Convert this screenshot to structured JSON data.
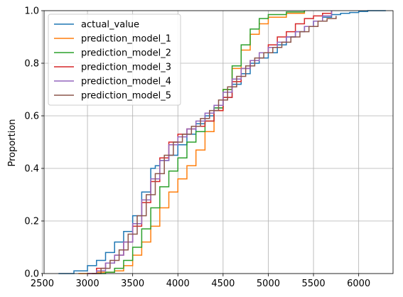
{
  "chart_data": {
    "type": "line",
    "subtype": "ecdf-step",
    "title": "",
    "xlabel": "",
    "ylabel": "Proportion",
    "xlim": [
      2520,
      6380
    ],
    "ylim": [
      0,
      1
    ],
    "xticks": [
      2500,
      3000,
      3500,
      4000,
      4500,
      5000,
      5500,
      6000
    ],
    "yticks": [
      0.0,
      0.2,
      0.4,
      0.6,
      0.8,
      1.0
    ],
    "grid": true,
    "legend_position": "top-left",
    "series": [
      {
        "name": "actual_value",
        "color": "#1f77b4",
        "points": [
          [
            2680,
            0
          ],
          [
            2850,
            0.01
          ],
          [
            3000,
            0.03
          ],
          [
            3100,
            0.05
          ],
          [
            3200,
            0.08
          ],
          [
            3300,
            0.12
          ],
          [
            3400,
            0.16
          ],
          [
            3500,
            0.22
          ],
          [
            3600,
            0.31
          ],
          [
            3700,
            0.4
          ],
          [
            3750,
            0.41
          ],
          [
            3800,
            0.43
          ],
          [
            3900,
            0.45
          ],
          [
            4000,
            0.49
          ],
          [
            4100,
            0.53
          ],
          [
            4200,
            0.57
          ],
          [
            4300,
            0.6
          ],
          [
            4400,
            0.63
          ],
          [
            4500,
            0.67
          ],
          [
            4600,
            0.72
          ],
          [
            4700,
            0.76
          ],
          [
            4800,
            0.8
          ],
          [
            4900,
            0.82
          ],
          [
            5000,
            0.84
          ],
          [
            5100,
            0.87
          ],
          [
            5200,
            0.9
          ],
          [
            5300,
            0.92
          ],
          [
            5400,
            0.94
          ],
          [
            5500,
            0.96
          ],
          [
            5600,
            0.975
          ],
          [
            5700,
            0.985
          ],
          [
            5800,
            0.99
          ],
          [
            5900,
            0.993
          ],
          [
            6000,
            0.997
          ],
          [
            6100,
            1.0
          ],
          [
            6300,
            1.0
          ]
        ]
      },
      {
        "name": "prediction_model_1",
        "color": "#ff7f0e",
        "points": [
          [
            2900,
            0
          ],
          [
            3100,
            0.005
          ],
          [
            3300,
            0.01
          ],
          [
            3400,
            0.03
          ],
          [
            3500,
            0.07
          ],
          [
            3600,
            0.12
          ],
          [
            3700,
            0.18
          ],
          [
            3800,
            0.25
          ],
          [
            3900,
            0.31
          ],
          [
            4000,
            0.36
          ],
          [
            4100,
            0.41
          ],
          [
            4200,
            0.47
          ],
          [
            4300,
            0.54
          ],
          [
            4400,
            0.62
          ],
          [
            4500,
            0.7
          ],
          [
            4600,
            0.78
          ],
          [
            4700,
            0.85
          ],
          [
            4800,
            0.91
          ],
          [
            4900,
            0.95
          ],
          [
            5000,
            0.975
          ],
          [
            5200,
            0.99
          ],
          [
            5400,
            1.0
          ]
        ]
      },
      {
        "name": "prediction_model_2",
        "color": "#2ca02c",
        "points": [
          [
            3100,
            0
          ],
          [
            3200,
            0.005
          ],
          [
            3300,
            0.02
          ],
          [
            3400,
            0.05
          ],
          [
            3500,
            0.1
          ],
          [
            3600,
            0.17
          ],
          [
            3700,
            0.25
          ],
          [
            3800,
            0.33
          ],
          [
            3900,
            0.39
          ],
          [
            4000,
            0.44
          ],
          [
            4100,
            0.5
          ],
          [
            4200,
            0.54
          ],
          [
            4300,
            0.58
          ],
          [
            4400,
            0.63
          ],
          [
            4500,
            0.7
          ],
          [
            4600,
            0.79
          ],
          [
            4700,
            0.87
          ],
          [
            4800,
            0.93
          ],
          [
            4900,
            0.97
          ],
          [
            5000,
            0.985
          ],
          [
            5200,
            0.995
          ],
          [
            5400,
            1.0
          ]
        ]
      },
      {
        "name": "prediction_model_3",
        "color": "#d62728",
        "points": [
          [
            3000,
            0
          ],
          [
            3100,
            0.02
          ],
          [
            3200,
            0.04
          ],
          [
            3300,
            0.07
          ],
          [
            3400,
            0.12
          ],
          [
            3500,
            0.18
          ],
          [
            3600,
            0.27
          ],
          [
            3700,
            0.35
          ],
          [
            3800,
            0.44
          ],
          [
            3900,
            0.5
          ],
          [
            4000,
            0.53
          ],
          [
            4100,
            0.55
          ],
          [
            4200,
            0.56
          ],
          [
            4300,
            0.58
          ],
          [
            4400,
            0.62
          ],
          [
            4500,
            0.67
          ],
          [
            4600,
            0.73
          ],
          [
            4700,
            0.78
          ],
          [
            4800,
            0.81
          ],
          [
            4900,
            0.84
          ],
          [
            5000,
            0.87
          ],
          [
            5100,
            0.9
          ],
          [
            5200,
            0.92
          ],
          [
            5300,
            0.95
          ],
          [
            5400,
            0.97
          ],
          [
            5500,
            0.98
          ],
          [
            5600,
            0.99
          ],
          [
            5700,
            1.0
          ]
        ]
      },
      {
        "name": "prediction_model_4",
        "color": "#9467bd",
        "points": [
          [
            3000,
            0
          ],
          [
            3100,
            0.01
          ],
          [
            3200,
            0.04
          ],
          [
            3300,
            0.07
          ],
          [
            3400,
            0.12
          ],
          [
            3500,
            0.19
          ],
          [
            3600,
            0.28
          ],
          [
            3700,
            0.36
          ],
          [
            3800,
            0.43
          ],
          [
            3900,
            0.49
          ],
          [
            4000,
            0.52
          ],
          [
            4100,
            0.55
          ],
          [
            4200,
            0.58
          ],
          [
            4300,
            0.61
          ],
          [
            4400,
            0.64
          ],
          [
            4500,
            0.69
          ],
          [
            4600,
            0.74
          ],
          [
            4700,
            0.78
          ],
          [
            4800,
            0.81
          ],
          [
            4900,
            0.84
          ],
          [
            5000,
            0.86
          ],
          [
            5100,
            0.88
          ],
          [
            5200,
            0.9
          ],
          [
            5300,
            0.92
          ],
          [
            5400,
            0.94
          ],
          [
            5500,
            0.96
          ],
          [
            5600,
            0.98
          ],
          [
            5700,
            1.0
          ]
        ]
      },
      {
        "name": "prediction_model_5",
        "color": "#8c564b",
        "points": [
          [
            3050,
            0
          ],
          [
            3150,
            0.02
          ],
          [
            3250,
            0.05
          ],
          [
            3350,
            0.09
          ],
          [
            3450,
            0.15
          ],
          [
            3550,
            0.22
          ],
          [
            3650,
            0.3
          ],
          [
            3750,
            0.38
          ],
          [
            3850,
            0.45
          ],
          [
            3950,
            0.5
          ],
          [
            4050,
            0.53
          ],
          [
            4150,
            0.56
          ],
          [
            4250,
            0.59
          ],
          [
            4350,
            0.62
          ],
          [
            4450,
            0.66
          ],
          [
            4550,
            0.71
          ],
          [
            4650,
            0.75
          ],
          [
            4750,
            0.79
          ],
          [
            4850,
            0.82
          ],
          [
            4950,
            0.84
          ],
          [
            5050,
            0.86
          ],
          [
            5150,
            0.88
          ],
          [
            5250,
            0.9
          ],
          [
            5350,
            0.92
          ],
          [
            5450,
            0.94
          ],
          [
            5550,
            0.96
          ],
          [
            5650,
            0.97
          ],
          [
            5750,
            0.98
          ]
        ]
      }
    ]
  }
}
